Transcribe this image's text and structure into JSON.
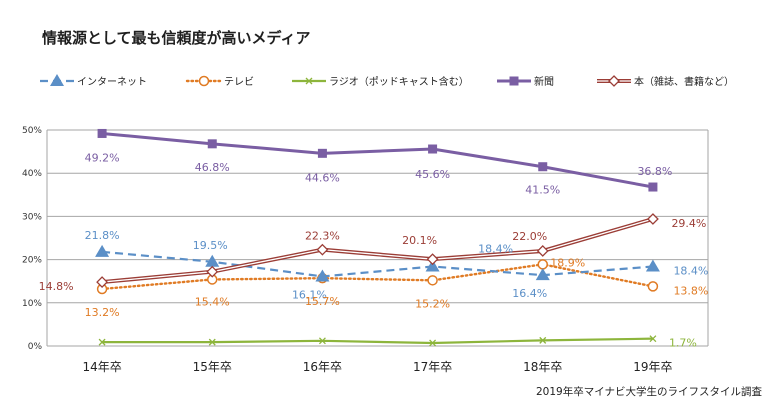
{
  "chart_data": {
    "type": "line",
    "title": "情報源として最も信頼度が高いメディア",
    "source": "2019年卒マイナビ大学生のライフスタイル調査",
    "categories": [
      "14年卒",
      "15年卒",
      "16年卒",
      "17年卒",
      "18年卒",
      "19年卒"
    ],
    "yticks": [
      "0%",
      "10%",
      "20%",
      "30%",
      "40%",
      "50%"
    ],
    "ylim": [
      0,
      50
    ],
    "grid": true,
    "legend_position": "top",
    "series": [
      {
        "name": "インターネット",
        "color": "#5b8fc7",
        "style": "dashed",
        "marker": "triangle",
        "values": [
          21.8,
          19.5,
          16.1,
          18.4,
          16.4,
          18.4
        ],
        "labels": [
          "21.8%",
          "19.5%",
          "16.1%",
          "18.4%",
          "16.4%",
          "18.4%"
        ]
      },
      {
        "name": "テレビ",
        "color": "#e07b24",
        "style": "dotted",
        "marker": "circle",
        "values": [
          13.2,
          15.4,
          15.7,
          15.2,
          18.9,
          13.8
        ],
        "labels": [
          "13.2%",
          "15.4%",
          "15.7%",
          "15.2%",
          "18.9%",
          "13.8%"
        ]
      },
      {
        "name": "ラジオ（ポッドキャスト含む）",
        "color": "#8db53c",
        "style": "solid",
        "marker": "x",
        "values": [
          0.9,
          0.9,
          1.2,
          0.7,
          1.3,
          1.7
        ],
        "labels": [
          "",
          "",
          "",
          "",
          "",
          "1.7%"
        ]
      },
      {
        "name": "新聞",
        "color": "#7a5ea3",
        "style": "solid",
        "marker": "square",
        "values": [
          49.2,
          46.8,
          44.6,
          45.6,
          41.5,
          36.8
        ],
        "labels": [
          "49.2%",
          "46.8%",
          "44.6%",
          "45.6%",
          "41.5%",
          "36.8%"
        ]
      },
      {
        "name": "本（雑誌、書籍など）",
        "color": "#9b3d36",
        "style": "double",
        "marker": "diamond",
        "values": [
          14.8,
          17.2,
          22.3,
          20.1,
          22.0,
          29.4
        ],
        "labels": [
          "14.8%",
          "",
          "22.3%",
          "20.1%",
          "22.0%",
          "29.4%"
        ]
      }
    ]
  }
}
